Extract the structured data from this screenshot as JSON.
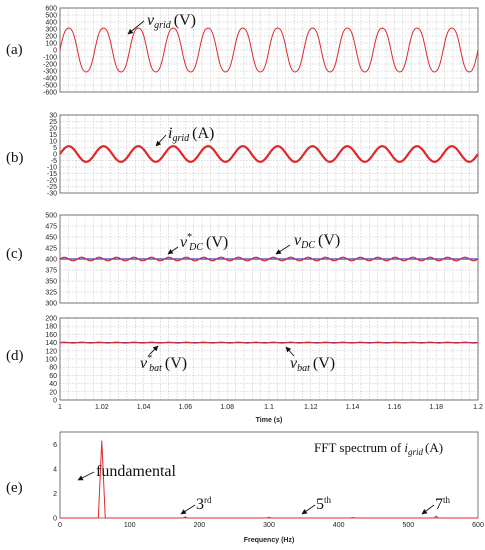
{
  "chart_data": [
    {
      "type": "line",
      "panel_label": "(a)",
      "annotation": {
        "symbol": "v",
        "sub": "grid",
        "unit": "(V)"
      },
      "x_range": [
        1.0,
        1.2
      ],
      "ylim": [
        -600,
        600
      ],
      "yticks": [
        "-600",
        "-500",
        "-400",
        "-300",
        "-200",
        "-100",
        "0",
        "100",
        "200",
        "300",
        "400",
        "500",
        "600"
      ],
      "series": [
        {
          "color": "#e0282b",
          "amplitude": 330,
          "frequency_hz": 60,
          "harmonic3_ratio": 0.05
        }
      ],
      "grid": true
    },
    {
      "type": "line",
      "panel_label": "(b)",
      "annotation": {
        "symbol": "i",
        "sub": "grid",
        "unit": "(A)"
      },
      "x_range": [
        1.0,
        1.2
      ],
      "ylim": [
        -30,
        30
      ],
      "yticks": [
        "-30",
        "-25",
        "-20",
        "-15",
        "-10",
        "-5",
        "0",
        "5",
        "10",
        "15",
        "20",
        "25",
        "30"
      ],
      "series": [
        {
          "color": "#e0282b",
          "amplitude": 6,
          "frequency_hz": 60
        }
      ],
      "grid": true
    },
    {
      "type": "line",
      "panel_label": "(c)",
      "annotations": [
        {
          "symbol": "v",
          "sup": "*",
          "sub": "DC",
          "unit": "(V)"
        },
        {
          "symbol": "v",
          "sub": "DC",
          "unit": "(V)"
        }
      ],
      "x_range": [
        1.0,
        1.2
      ],
      "ylim": [
        300,
        500
      ],
      "yticks": [
        "300",
        "325",
        "350",
        "375",
        "400",
        "425",
        "450",
        "475",
        "500"
      ],
      "series": [
        {
          "color": "#2b3fd1",
          "mean": 400,
          "ripple": 0
        },
        {
          "color": "#e0282b",
          "mean": 400,
          "ripple": 4,
          "ripple_hz": 120
        }
      ],
      "grid": true
    },
    {
      "type": "line",
      "panel_label": "(d)",
      "annotations": [
        {
          "symbol": "v",
          "sup": "*",
          "sub": "bat",
          "unit": "(V)"
        },
        {
          "symbol": "v",
          "sub": "bat",
          "unit": "(V)"
        }
      ],
      "x_range": [
        1.0,
        1.2
      ],
      "ylim": [
        0,
        200
      ],
      "yticks": [
        "0",
        "20",
        "40",
        "60",
        "80",
        "100",
        "120",
        "140",
        "160",
        "180",
        "200"
      ],
      "xticks": [
        "1",
        "1.02",
        "1.04",
        "1.06",
        "1.08",
        "1.1",
        "1.12",
        "1.14",
        "1.16",
        "1.18",
        "1.2"
      ],
      "xlabel": "Time (s)",
      "series": [
        {
          "color": "#2b3fd1",
          "mean": 140,
          "ripple": 0
        },
        {
          "color": "#e0282b",
          "mean": 140,
          "ripple": 1,
          "ripple_hz": 120
        }
      ],
      "grid": true
    },
    {
      "type": "bar",
      "panel_label": "(e)",
      "title_prefix": "FFT spectrum of ",
      "title_symbol": "i",
      "title_sub": "grid",
      "title_unit": "(A)",
      "x_range": [
        0,
        600
      ],
      "ylim": [
        0,
        7
      ],
      "yticks": [
        "0",
        "2",
        "4",
        "6"
      ],
      "xticks": [
        "0",
        "100",
        "200",
        "300",
        "400",
        "500",
        "600"
      ],
      "xlabel": "Frequency (Hz)",
      "color": "#e0282b",
      "spectrum": [
        {
          "freq": 60,
          "amp": 6.3
        },
        {
          "freq": 180,
          "amp": 0.1
        },
        {
          "freq": 300,
          "amp": 0.06
        },
        {
          "freq": 420,
          "amp": 0.04
        },
        {
          "freq": 540,
          "amp": 0.15
        }
      ],
      "labels": {
        "fundamental": "fundamental",
        "h3": {
          "n": "3",
          "sup": "rd"
        },
        "h5": {
          "n": "5",
          "sup": "th"
        },
        "h7": {
          "n": "7",
          "sup": "th"
        }
      },
      "grid": false
    }
  ]
}
